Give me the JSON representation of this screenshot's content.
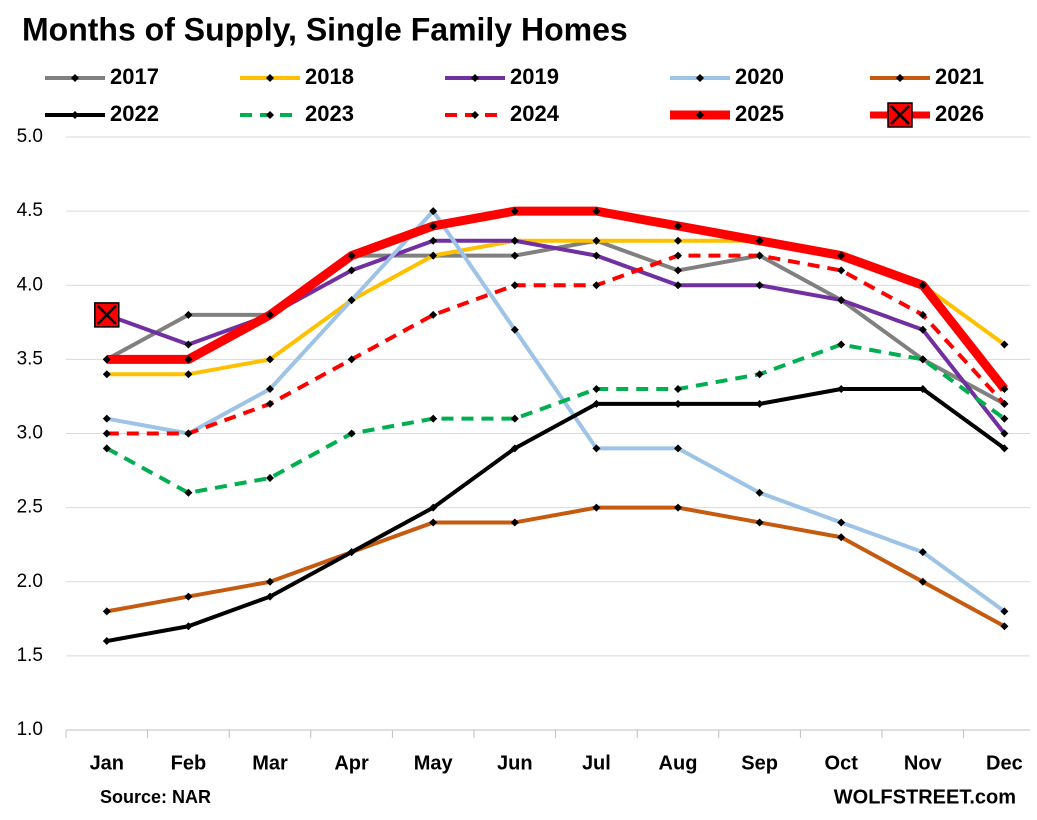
{
  "chart_data": {
    "type": "line",
    "title": "Months of Supply, Single Family Homes",
    "categories": [
      "Jan",
      "Feb",
      "Mar",
      "Apr",
      "May",
      "Jun",
      "Jul",
      "Aug",
      "Sep",
      "Oct",
      "Nov",
      "Dec"
    ],
    "ylim": [
      1.0,
      5.0
    ],
    "yticks": [
      {
        "value": 1.0,
        "label": "1.0"
      },
      {
        "value": 1.5,
        "label": "1.5"
      },
      {
        "value": 2.0,
        "label": "2.0"
      },
      {
        "value": 2.5,
        "label": "2.5"
      },
      {
        "value": 3.0,
        "label": "3.0"
      },
      {
        "value": 3.5,
        "label": "3.5"
      },
      {
        "value": 4.0,
        "label": "4.0"
      },
      {
        "value": 4.5,
        "label": "4.5"
      },
      {
        "value": 5.0,
        "label": "5.0"
      }
    ],
    "grid": true,
    "source": "Source: NAR",
    "watermark": "WOLFSTREET.com",
    "series": [
      {
        "name": "2017",
        "color": "#808080",
        "width": 4,
        "dash": "solid",
        "values": [
          3.5,
          3.8,
          3.8,
          4.2,
          4.2,
          4.2,
          4.3,
          4.1,
          4.2,
          3.9,
          3.5,
          3.2
        ]
      },
      {
        "name": "2018",
        "color": "#ffc000",
        "width": 4,
        "dash": "solid",
        "values": [
          3.4,
          3.4,
          3.5,
          3.9,
          4.2,
          4.3,
          4.3,
          4.3,
          4.3,
          4.2,
          4.0,
          3.6
        ]
      },
      {
        "name": "2019",
        "color": "#7030a0",
        "width": 4,
        "dash": "solid",
        "values": [
          3.8,
          3.6,
          3.8,
          4.1,
          4.3,
          4.3,
          4.2,
          4.0,
          4.0,
          3.9,
          3.7,
          3.0
        ]
      },
      {
        "name": "2020",
        "color": "#9dc3e6",
        "width": 4,
        "dash": "solid",
        "values": [
          3.1,
          3.0,
          3.3,
          3.9,
          4.5,
          3.7,
          2.9,
          2.9,
          2.6,
          2.4,
          2.2,
          1.8
        ]
      },
      {
        "name": "2021",
        "color": "#c55a11",
        "width": 4,
        "dash": "solid",
        "values": [
          1.8,
          1.9,
          2.0,
          2.2,
          2.4,
          2.4,
          2.5,
          2.5,
          2.4,
          2.3,
          2.0,
          1.7
        ]
      },
      {
        "name": "2022",
        "color": "#000000",
        "width": 4,
        "dash": "solid",
        "values": [
          1.6,
          1.7,
          1.9,
          2.2,
          2.5,
          2.9,
          3.2,
          3.2,
          3.2,
          3.3,
          3.3,
          2.9
        ]
      },
      {
        "name": "2023",
        "color": "#00b050",
        "width": 4,
        "dash": "dashed",
        "values": [
          2.9,
          2.6,
          2.7,
          3.0,
          3.1,
          3.1,
          3.3,
          3.3,
          3.4,
          3.6,
          3.5,
          3.1
        ]
      },
      {
        "name": "2024",
        "color": "#ff0000",
        "width": 4,
        "dash": "dashed",
        "values": [
          3.0,
          3.0,
          3.2,
          3.5,
          3.8,
          4.0,
          4.0,
          4.2,
          4.2,
          4.1,
          3.8,
          3.2
        ]
      },
      {
        "name": "2025",
        "color": "#ff0000",
        "width": 9,
        "dash": "solid",
        "values": [
          3.5,
          3.5,
          3.8,
          4.2,
          4.4,
          4.5,
          4.5,
          4.4,
          4.3,
          4.2,
          4.0,
          3.3
        ]
      },
      {
        "name": "2026",
        "color": "#ff0000",
        "width": 7,
        "dash": "solid",
        "marker": "square-x",
        "values": [
          3.8,
          null,
          null,
          null,
          null,
          null,
          null,
          null,
          null,
          null,
          null,
          null
        ]
      }
    ]
  }
}
